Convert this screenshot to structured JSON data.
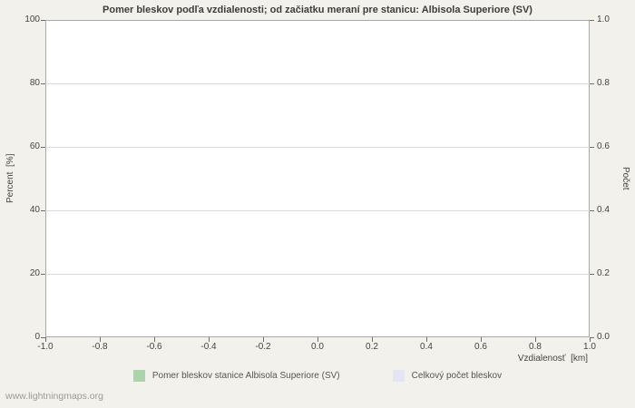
{
  "page": {
    "watermark": "www.lightningmaps.org"
  },
  "chart_data": {
    "type": "bar",
    "title": "Pomer bleskov podľa vzdialenosti; od začiatku meraní pre stanicu: Albisola Superiore (SV)",
    "xlabel": "Vzdialenosť  [km]",
    "ylabel_left": "Percent  [%]",
    "ylabel_right": "Počet",
    "x_ticks": [
      "-1.0",
      "-0.8",
      "-0.6",
      "-0.4",
      "-0.2",
      "0.0",
      "0.2",
      "0.4",
      "0.6",
      "0.8",
      "1.0"
    ],
    "y_ticks_left": [
      "0",
      "20",
      "40",
      "60",
      "80",
      "100"
    ],
    "y_ticks_right": [
      "0.0",
      "0.2",
      "0.4",
      "0.6",
      "0.8",
      "1.0"
    ],
    "xlim": [
      -1.0,
      1.0
    ],
    "ylim_left": [
      0,
      100
    ],
    "ylim_right": [
      0.0,
      1.0
    ],
    "grid": "horizontal",
    "legend_position": "bottom",
    "series": [
      {
        "name": "Pomer bleskov stanice Albisola Superiore (SV)",
        "color": "#abd4ab",
        "values": []
      },
      {
        "name": "Celkový počet bleskov",
        "color": "#e4e4f2",
        "values": []
      }
    ]
  }
}
